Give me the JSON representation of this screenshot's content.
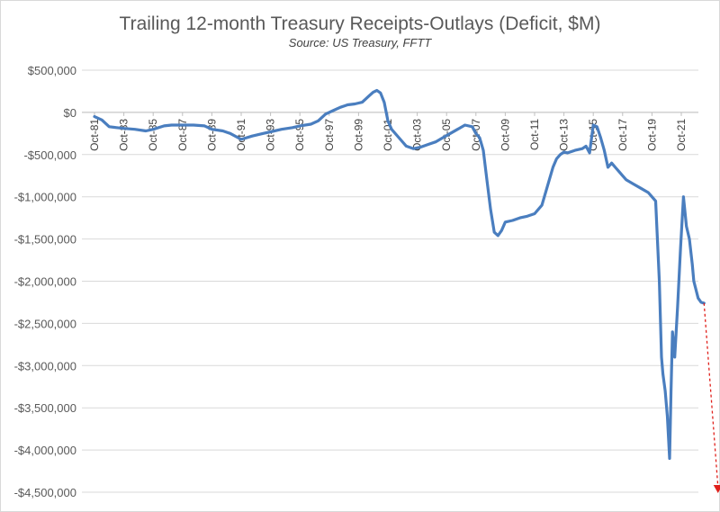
{
  "chart_data": {
    "type": "line",
    "title": "Trailing 12-month Treasury Receipts-Outlays (Deficit, $M)",
    "subtitle": "Source: US Treasury, FFTT",
    "xlabel": "",
    "ylabel": "",
    "ylim": [
      -4500000,
      500000
    ],
    "yticks": [
      {
        "value": 500000,
        "label": "$500,000"
      },
      {
        "value": 0,
        "label": "$0"
      },
      {
        "value": -500000,
        "label": "-$500,000"
      },
      {
        "value": -1000000,
        "label": "-$1,000,000"
      },
      {
        "value": -1500000,
        "label": "-$1,500,000"
      },
      {
        "value": -2000000,
        "label": "-$2,000,000"
      },
      {
        "value": -2500000,
        "label": "-$2,500,000"
      },
      {
        "value": -3000000,
        "label": "-$3,000,000"
      },
      {
        "value": -3500000,
        "label": "-$3,500,000"
      },
      {
        "value": -4000000,
        "label": "-$4,000,000"
      },
      {
        "value": -4500000,
        "label": "-$4,500,000"
      }
    ],
    "xticks": [
      "Oct-81",
      "Oct-83",
      "Oct-85",
      "Oct-87",
      "Oct-89",
      "Oct-91",
      "Oct-93",
      "Oct-95",
      "Oct-97",
      "Oct-99",
      "Oct-01",
      "Oct-03",
      "Oct-05",
      "Oct-07",
      "Oct-09",
      "Oct-11",
      "Oct-13",
      "Oct-15",
      "Oct-17",
      "Oct-19",
      "Oct-21"
    ],
    "grid": "horizontal",
    "line_color": "#4a7ebf",
    "projection_color": "#e0201b",
    "series": [
      {
        "x": [
          1981.75,
          1982.25,
          1982.75,
          1983.25,
          1983.75,
          1984.5,
          1985.25,
          1985.75,
          1986.5,
          1987.0,
          1987.75,
          1988.5,
          1989.25,
          1989.75,
          1990.5,
          1991.0,
          1991.75,
          1992.5,
          1993.25,
          1993.75,
          1994.5,
          1995.25,
          1995.75,
          1996.5,
          1997.0,
          1997.5,
          1998.0,
          1998.5,
          1999.0,
          1999.5,
          2000.0,
          2000.5,
          2000.75,
          2001.0,
          2001.25,
          2001.5,
          2001.75,
          2002.0,
          2002.5,
          2003.0,
          2003.5,
          2004.0,
          2004.5,
          2005.0,
          2005.5,
          2006.0,
          2006.5,
          2007.0,
          2007.5,
          2007.75,
          2008.0,
          2008.25,
          2008.5,
          2008.75,
          2009.0,
          2009.25,
          2009.5,
          2009.75,
          2010.25,
          2010.75,
          2011.25,
          2011.75,
          2012.25,
          2012.75,
          2013.0,
          2013.25,
          2013.5,
          2013.75,
          2014.0,
          2014.5,
          2015.0,
          2015.25,
          2015.5,
          2015.75,
          2016.0,
          2016.25,
          2016.5,
          2016.75,
          2017.0,
          2017.25,
          2017.5,
          2017.75,
          2018.0,
          2018.5,
          2019.0,
          2019.5,
          2019.75,
          2020.0,
          2020.25,
          2020.4,
          2020.5,
          2020.65,
          2020.8,
          2020.95,
          2021.05,
          2021.15,
          2021.3,
          2021.5,
          2021.7,
          2021.9,
          2022.1,
          2022.3,
          2022.5,
          2022.6,
          2022.75,
          2022.9,
          2023.1,
          2023.3
        ],
        "values": [
          -50000,
          -90000,
          -170000,
          -180000,
          -190000,
          -200000,
          -220000,
          -200000,
          -160000,
          -150000,
          -150000,
          -150000,
          -160000,
          -200000,
          -220000,
          -250000,
          -320000,
          -280000,
          -250000,
          -230000,
          -200000,
          -180000,
          -160000,
          -140000,
          -100000,
          -20000,
          20000,
          60000,
          90000,
          100000,
          120000,
          200000,
          240000,
          260000,
          230000,
          120000,
          -100000,
          -200000,
          -300000,
          -400000,
          -430000,
          -410000,
          -380000,
          -350000,
          -300000,
          -250000,
          -200000,
          -150000,
          -170000,
          -250000,
          -300000,
          -450000,
          -800000,
          -1150000,
          -1420000,
          -1460000,
          -1400000,
          -1300000,
          -1280000,
          -1250000,
          -1230000,
          -1200000,
          -1100000,
          -800000,
          -650000,
          -550000,
          -500000,
          -470000,
          -480000,
          -450000,
          -430000,
          -400000,
          -480000,
          -150000,
          -170000,
          -300000,
          -450000,
          -650000,
          -600000,
          -650000,
          -700000,
          -750000,
          -800000,
          -850000,
          -900000,
          -950000,
          -1000000,
          -1050000,
          -2000000,
          -2900000,
          -3100000,
          -3300000,
          -3600000,
          -4100000,
          -3300000,
          -2600000,
          -2900000,
          -2300000,
          -1600000,
          -1000000,
          -1350000,
          -1500000,
          -1800000,
          -2000000,
          -2100000,
          -2200000,
          -2250000,
          -2260000
        ]
      }
    ],
    "projection": {
      "x": [
        2023.3,
        2024.25
      ],
      "values": [
        -2260000,
        -4500000
      ]
    }
  }
}
